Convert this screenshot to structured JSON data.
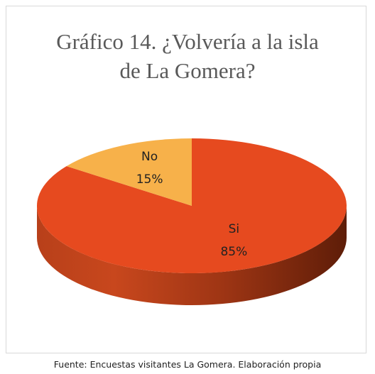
{
  "chart_data": {
    "type": "pie",
    "title": "Gráfico 14. ¿Volvería a la isla de La Gomera?",
    "categories": [
      "Si",
      "No"
    ],
    "values": [
      85,
      15
    ],
    "value_labels": [
      "85%",
      "15%"
    ],
    "colors": [
      "#e64a1f",
      "#f7b14a"
    ],
    "three_d": true,
    "source": "Fuente: Encuestas visitantes La Gomera. Elaboración propia"
  }
}
